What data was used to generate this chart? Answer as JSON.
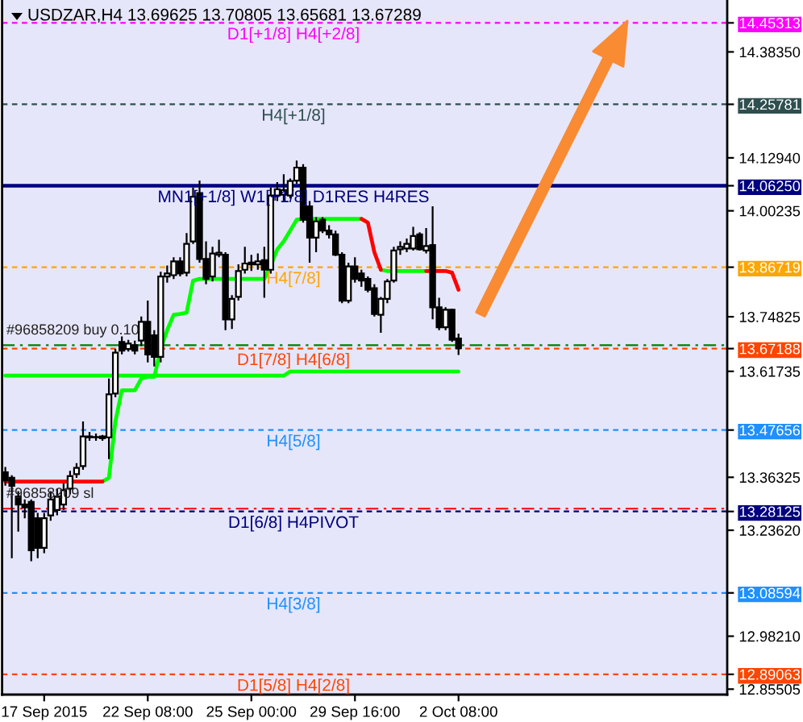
{
  "chart_data": {
    "type": "candlestick",
    "title": "USDZAR,H4 13.69625 13.70805 13.65681 13.67289",
    "categories": [
      null,
      null,
      null,
      null,
      null,
      null,
      "17 Sep 2015",
      null,
      null,
      null,
      null,
      null,
      null,
      null,
      null,
      null,
      null,
      null,
      null,
      null,
      null,
      null,
      "22 Sep 08:00",
      null,
      null,
      null,
      null,
      null,
      null,
      null,
      null,
      null,
      null,
      null,
      null,
      null,
      null,
      null,
      "25 Sep 00:00",
      null,
      null,
      null,
      null,
      null,
      null,
      null,
      null,
      null,
      null,
      null,
      null,
      null,
      null,
      null,
      "29 Sep 16:00",
      null,
      null,
      null,
      null,
      null,
      null,
      null,
      null,
      null,
      null,
      null,
      null,
      null,
      null,
      null,
      "2 Oct 08:00",
      null,
      null,
      null,
      null,
      null,
      null,
      null,
      null,
      null,
      null,
      null,
      null,
      null,
      null,
      null,
      null,
      null,
      null,
      null,
      null,
      null,
      null,
      null,
      null,
      null,
      null,
      null,
      null,
      null,
      null,
      null,
      null,
      null,
      null,
      null,
      null,
      null,
      null,
      null,
      null,
      null
    ],
    "ohlc": [
      [
        13.375,
        13.388,
        13.343,
        13.356
      ],
      [
        13.362,
        13.368,
        13.169,
        13.343
      ],
      [
        13.317,
        13.33,
        13.233,
        13.298
      ],
      [
        13.298,
        13.31,
        13.265,
        13.291
      ],
      [
        13.304,
        13.31,
        13.162,
        13.188
      ],
      [
        13.265,
        13.278,
        13.169,
        13.194
      ],
      [
        13.194,
        13.278,
        13.181,
        13.265
      ],
      [
        13.272,
        13.33,
        13.259,
        13.31
      ],
      [
        13.285,
        13.336,
        13.272,
        13.317
      ],
      [
        13.298,
        13.349,
        13.285,
        13.332
      ],
      [
        13.336,
        13.379,
        13.323,
        13.366
      ],
      [
        13.371,
        13.397,
        13.362,
        13.386
      ],
      [
        13.39,
        13.497,
        13.381,
        13.461
      ],
      [
        13.461,
        13.472,
        13.451,
        13.459
      ],
      [
        13.459,
        13.468,
        13.451,
        13.46
      ],
      [
        13.457,
        13.465,
        13.451,
        13.461
      ],
      [
        13.459,
        13.6,
        13.407,
        13.562
      ],
      [
        13.564,
        13.671,
        13.555,
        13.662
      ],
      [
        13.688,
        13.701,
        13.658,
        13.667
      ],
      [
        13.671,
        13.693,
        13.665,
        13.684
      ],
      [
        13.68,
        13.691,
        13.658,
        13.667
      ],
      [
        13.691,
        13.749,
        13.678,
        13.736
      ],
      [
        13.736,
        13.787,
        13.639,
        13.658
      ],
      [
        13.704,
        13.716,
        13.629,
        13.652
      ],
      [
        13.652,
        13.856,
        13.639,
        13.845
      ],
      [
        13.845,
        13.871,
        13.83,
        13.852
      ],
      [
        13.848,
        13.891,
        13.839,
        13.881
      ],
      [
        13.881,
        13.891,
        13.845,
        13.852
      ],
      [
        13.854,
        13.949,
        13.845,
        13.923
      ],
      [
        13.929,
        14.058,
        13.923,
        14.036
      ],
      [
        14.045,
        14.075,
        13.878,
        13.887
      ],
      [
        13.887,
        13.929,
        13.826,
        13.839
      ],
      [
        13.845,
        13.916,
        13.833,
        13.9
      ],
      [
        13.897,
        13.933,
        13.891,
        13.902
      ],
      [
        13.897,
        13.903,
        13.716,
        13.742
      ],
      [
        13.742,
        13.8,
        13.719,
        13.791
      ],
      [
        13.796,
        13.874,
        13.787,
        13.858
      ],
      [
        13.861,
        13.916,
        13.852,
        13.876
      ],
      [
        13.878,
        13.897,
        13.858,
        13.874
      ],
      [
        13.874,
        13.9,
        13.861,
        13.881
      ],
      [
        13.884,
        13.916,
        13.794,
        13.861
      ],
      [
        13.861,
        14.058,
        13.852,
        14.039
      ],
      [
        14.039,
        14.071,
        14.026,
        14.054
      ],
      [
        14.041,
        14.09,
        14.026,
        14.052
      ],
      [
        14.039,
        14.08,
        14.032,
        14.074
      ],
      [
        14.075,
        14.123,
        14.067,
        14.106
      ],
      [
        14.106,
        14.114,
        13.974,
        13.981
      ],
      [
        14.013,
        14.026,
        13.878,
        13.938
      ],
      [
        13.938,
        13.987,
        13.903,
        13.977
      ],
      [
        13.981,
        13.987,
        13.949,
        13.955
      ],
      [
        13.955,
        13.968,
        13.936,
        13.946
      ],
      [
        13.946,
        13.955,
        13.894,
        13.897
      ],
      [
        13.897,
        13.903,
        13.781,
        13.787
      ],
      [
        13.787,
        13.878,
        13.781,
        13.869
      ],
      [
        13.869,
        13.891,
        13.83,
        13.839
      ],
      [
        13.852,
        13.861,
        13.82,
        13.835
      ],
      [
        13.839,
        13.845,
        13.807,
        13.813
      ],
      [
        13.817,
        13.826,
        13.749,
        13.755
      ],
      [
        13.753,
        13.796,
        13.71,
        13.791
      ],
      [
        13.791,
        13.839,
        13.781,
        13.833
      ],
      [
        13.835,
        13.916,
        13.83,
        13.907
      ],
      [
        13.91,
        13.929,
        13.897,
        13.916
      ],
      [
        13.912,
        13.936,
        13.903,
        13.923
      ],
      [
        13.912,
        13.964,
        13.907,
        13.942
      ],
      [
        13.946,
        13.951,
        13.907,
        13.91
      ],
      [
        13.907,
        13.961,
        13.9,
        13.918
      ],
      [
        13.92,
        14.013,
        13.742,
        13.771
      ],
      [
        13.771,
        13.794,
        13.716,
        13.723
      ],
      [
        13.723,
        13.771,
        13.716,
        13.765
      ],
      [
        13.765,
        13.768,
        13.688,
        13.693
      ],
      [
        13.69625,
        13.70805,
        13.65681,
        13.67289
      ],
      null,
      null,
      null,
      null,
      null,
      null,
      null,
      null,
      null,
      null,
      null,
      null,
      null,
      null,
      null,
      null,
      null,
      null,
      null,
      null,
      null,
      null,
      null,
      null,
      null,
      null,
      null,
      null,
      null,
      null,
      null,
      null,
      null,
      null,
      null,
      null,
      null,
      null,
      null,
      null,
      null
    ],
    "series": [
      {
        "type": "line",
        "color": "#00ff00",
        "values": [
          13.607,
          13.607,
          13.607,
          13.607,
          13.607,
          13.607,
          13.607,
          13.607,
          13.607,
          13.607,
          13.607,
          13.607,
          13.607,
          13.607,
          13.607,
          13.607,
          13.607,
          13.607,
          13.607,
          13.607,
          13.607,
          13.607,
          13.607,
          13.607,
          13.607,
          13.607,
          13.607,
          13.607,
          13.607,
          13.607,
          13.607,
          13.607,
          13.607,
          13.607,
          13.607,
          13.607,
          13.607,
          13.607,
          13.607,
          13.607,
          13.607,
          13.607,
          13.607,
          13.607,
          13.617,
          13.617,
          13.617,
          13.617,
          13.617,
          13.617,
          13.617,
          13.617,
          13.617,
          13.617,
          13.617,
          13.617,
          13.617,
          13.617,
          13.617,
          13.617,
          13.617,
          13.617,
          13.617,
          13.617,
          13.617,
          13.617,
          13.617,
          13.617,
          13.617,
          13.617,
          13.617,
          null,
          null,
          null,
          null,
          null,
          null,
          null,
          null,
          null,
          null,
          null,
          null,
          null,
          null,
          null,
          null,
          null,
          null,
          null,
          null,
          null,
          null,
          null,
          null,
          null,
          null,
          null,
          null,
          null,
          null,
          null,
          null,
          null,
          null,
          null,
          null,
          null,
          null,
          null,
          null,
          null
        ]
      },
      {
        "type": "line",
        "color": "#00ff00",
        "values": [
          null,
          null,
          null,
          null,
          null,
          null,
          null,
          null,
          null,
          null,
          null,
          null,
          null,
          null,
          null,
          13.353,
          13.362,
          13.497,
          13.572,
          13.572,
          13.572,
          13.6,
          13.604,
          13.604,
          13.671,
          13.716,
          13.753,
          13.755,
          13.758,
          13.835,
          13.839,
          13.839,
          13.839,
          13.839,
          13.839,
          13.839,
          13.839,
          13.839,
          13.839,
          13.839,
          13.839,
          13.871,
          13.91,
          13.929,
          13.955,
          13.981,
          13.983,
          13.983,
          13.983,
          13.983,
          13.983,
          13.983,
          13.983,
          13.983,
          13.983,
          13.983,
          null,
          null,
          13.861,
          13.858,
          13.858,
          13.858,
          13.858,
          13.858,
          13.858,
          13.858,
          null,
          null,
          null,
          null,
          null,
          null,
          null,
          null,
          null,
          null,
          null,
          null,
          null,
          null,
          null,
          null,
          null,
          null,
          null,
          null,
          null,
          null,
          null,
          null,
          null,
          null,
          null,
          null,
          null,
          null,
          null,
          null,
          null,
          null,
          null,
          null,
          null,
          null,
          null,
          null,
          null,
          null,
          null,
          null,
          null,
          null
        ]
      },
      {
        "type": "line",
        "color": "#ff0000",
        "values": [
          13.353,
          13.353,
          13.353,
          13.353,
          13.353,
          13.353,
          13.353,
          13.353,
          13.353,
          13.353,
          13.353,
          13.353,
          13.353,
          13.353,
          13.353,
          13.353,
          null,
          null,
          null,
          null,
          null,
          null,
          null,
          null,
          null,
          null,
          null,
          null,
          null,
          null,
          null,
          null,
          null,
          null,
          null,
          null,
          null,
          null,
          null,
          null,
          null,
          null,
          null,
          null,
          null,
          null,
          null,
          null,
          null,
          null,
          null,
          null,
          null,
          null,
          null,
          13.983,
          13.974,
          13.903,
          13.861,
          null,
          null,
          null,
          null,
          null,
          null,
          13.858,
          13.858,
          13.858,
          13.858,
          13.854,
          13.813,
          null,
          null,
          null,
          null,
          null,
          null,
          null,
          null,
          null,
          null,
          null,
          null,
          null,
          null,
          null,
          null,
          null,
          null,
          null,
          null,
          null,
          null,
          null,
          null,
          null,
          null,
          null,
          null,
          null,
          null,
          null,
          null,
          null,
          null,
          null,
          null,
          null,
          null,
          null,
          null,
          null
        ]
      }
    ],
    "ylim": [
      12.842,
      14.508
    ],
    "yticks": [
      14.45313,
      {
        "value": 14.3835,
        "label": "14.38350"
      },
      14.25781,
      {
        "value": 14.1294,
        "label": "14.12940"
      },
      {
        "value": 14.0625,
        "label": "14.06250"
      },
      14.00235,
      13.86719,
      13.74825,
      13.67188,
      13.61735,
      13.47656,
      13.36325,
      13.28125,
      {
        "value": 13.2362,
        "label": "13.23620"
      },
      13.08594,
      {
        "value": 12.9821,
        "label": "12.98210"
      },
      12.89063,
      12.85505
    ],
    "ref_lines": [
      {
        "axis": "y",
        "value": 14.45313,
        "label": "D1[+1/8] H4[+2/8]",
        "color": "#ff00ff",
        "line_style": "dashed"
      },
      {
        "axis": "y",
        "value": 14.25781,
        "label": "H4[+1/8]",
        "color": "#2f4f4f",
        "line_style": "dashed"
      },
      {
        "axis": "y",
        "value": 14.0625,
        "label": "MN1[+1/8] W1[+1/8] D1RES H4RES",
        "color": "#000080",
        "line_style": "solid"
      },
      {
        "axis": "y",
        "value": 13.86719,
        "label": "H4[7/8]",
        "color": "#ffa500",
        "line_style": "dashed"
      },
      {
        "axis": "y",
        "value": 13.68,
        "label": "#96858209 buy 0.10",
        "color": "#008000",
        "line_style": "dashdot"
      },
      {
        "axis": "y",
        "value": 13.67188,
        "label": "D1[7/8] H4[6/8]",
        "color": "#ff4500",
        "line_style": "dashed"
      },
      {
        "axis": "y",
        "value": 13.47656,
        "label": "H4[5/8]",
        "color": "#1e90ff",
        "line_style": "dashed"
      },
      {
        "axis": "y",
        "value": 13.288,
        "label": "#96858209 sl",
        "color": "#ff0000",
        "line_style": "dashdot"
      },
      {
        "axis": "y",
        "value": 13.28125,
        "label": "D1[6/8] H4PIVOT",
        "color": "#000080",
        "line_style": "dashed"
      },
      {
        "axis": "y",
        "value": 13.08594,
        "label": "H4[3/8]",
        "color": "#1e90ff",
        "line_style": "dashed"
      },
      {
        "axis": "y",
        "value": 12.89063,
        "label": "D1[5/8] H4[2/8]",
        "color": "#ff4500",
        "line_style": "dashed"
      }
    ]
  }
}
